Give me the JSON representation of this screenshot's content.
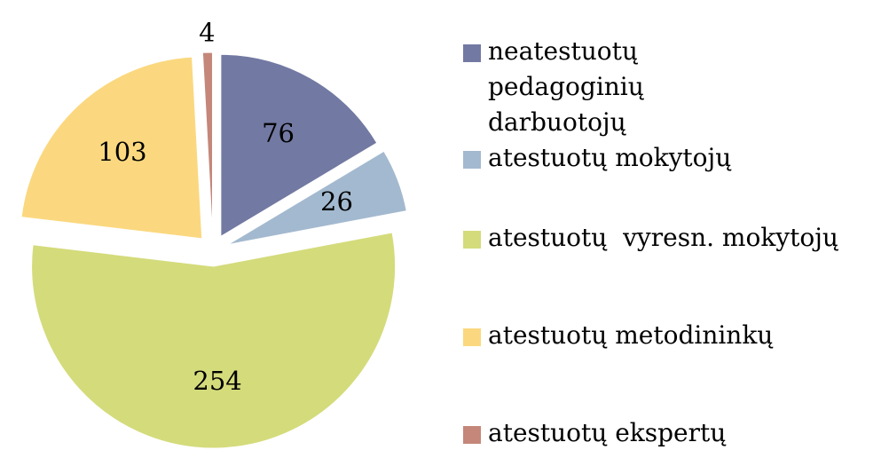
{
  "chart_data": {
    "type": "pie",
    "categories": [
      "neatestuotų pedagoginių darbuotojų",
      "atestuotų mokytojų",
      "atestuotų  vyresn. mokytojų",
      "atestuotų metodininkų",
      "atestuotų ekspertų"
    ],
    "values": [
      76,
      26,
      254,
      103,
      4
    ],
    "colors": [
      "#7279a2",
      "#a3b9cf",
      "#d4db7b",
      "#fbd87f",
      "#c4877a"
    ],
    "legend": "right"
  }
}
